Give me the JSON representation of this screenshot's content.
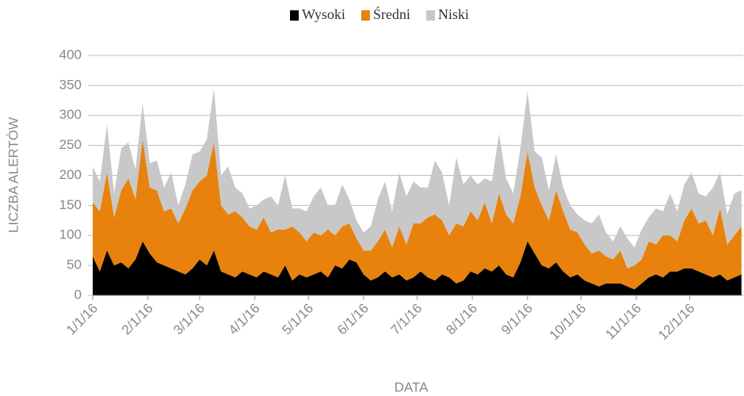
{
  "chart_data": {
    "type": "stacked_area",
    "xlabel": "DATA",
    "ylabel": "LICZBA ALERTÓW",
    "x": [
      "2016-01-01",
      "2016-01-05",
      "2016-01-09",
      "2016-01-13",
      "2016-01-17",
      "2016-01-21",
      "2016-01-25",
      "2016-01-29",
      "2016-02-02",
      "2016-02-06",
      "2016-02-10",
      "2016-02-14",
      "2016-02-18",
      "2016-02-22",
      "2016-02-26",
      "2016-03-01",
      "2016-03-05",
      "2016-03-09",
      "2016-03-13",
      "2016-03-17",
      "2016-03-21",
      "2016-03-25",
      "2016-03-29",
      "2016-04-02",
      "2016-04-06",
      "2016-04-10",
      "2016-04-14",
      "2016-04-18",
      "2016-04-22",
      "2016-04-26",
      "2016-04-30",
      "2016-05-04",
      "2016-05-08",
      "2016-05-12",
      "2016-05-16",
      "2016-05-20",
      "2016-05-24",
      "2016-05-28",
      "2016-06-01",
      "2016-06-05",
      "2016-06-09",
      "2016-06-13",
      "2016-06-17",
      "2016-06-21",
      "2016-06-25",
      "2016-06-29",
      "2016-07-03",
      "2016-07-07",
      "2016-07-11",
      "2016-07-15",
      "2016-07-19",
      "2016-07-23",
      "2016-07-27",
      "2016-07-31",
      "2016-08-04",
      "2016-08-08",
      "2016-08-12",
      "2016-08-16",
      "2016-08-20",
      "2016-08-24",
      "2016-08-28",
      "2016-09-01",
      "2016-09-05",
      "2016-09-09",
      "2016-09-13",
      "2016-09-17",
      "2016-09-21",
      "2016-09-25",
      "2016-09-29",
      "2016-10-03",
      "2016-10-07",
      "2016-10-11",
      "2016-10-15",
      "2016-10-19",
      "2016-10-23",
      "2016-10-27",
      "2016-10-31",
      "2016-11-04",
      "2016-11-08",
      "2016-11-12",
      "2016-11-16",
      "2016-11-20",
      "2016-11-24",
      "2016-11-28",
      "2016-12-02",
      "2016-12-06",
      "2016-12-10",
      "2016-12-14",
      "2016-12-18",
      "2016-12-22",
      "2016-12-26",
      "2016-12-30"
    ],
    "series": [
      {
        "name": "Wysoki",
        "color": "#000000",
        "values": [
          65,
          40,
          75,
          50,
          55,
          45,
          60,
          90,
          70,
          55,
          50,
          45,
          40,
          35,
          45,
          60,
          50,
          75,
          40,
          35,
          30,
          40,
          35,
          30,
          40,
          35,
          30,
          50,
          25,
          35,
          30,
          35,
          40,
          30,
          50,
          45,
          60,
          55,
          35,
          25,
          30,
          40,
          30,
          35,
          25,
          30,
          40,
          30,
          25,
          35,
          30,
          20,
          25,
          40,
          35,
          45,
          40,
          50,
          35,
          30,
          55,
          90,
          70,
          50,
          45,
          55,
          40,
          30,
          35,
          25,
          20,
          15,
          20,
          20,
          20,
          15,
          10,
          20,
          30,
          35,
          30,
          40,
          40,
          45,
          45,
          40,
          35,
          30,
          35,
          25,
          30,
          35
        ]
      },
      {
        "name": "Średni",
        "color": "#e8820c",
        "values": [
          90,
          100,
          130,
          80,
          120,
          150,
          100,
          170,
          110,
          120,
          90,
          100,
          80,
          110,
          130,
          130,
          150,
          180,
          110,
          100,
          110,
          90,
          80,
          80,
          90,
          70,
          80,
          60,
          90,
          70,
          60,
          70,
          60,
          80,
          50,
          70,
          60,
          40,
          40,
          50,
          60,
          70,
          50,
          80,
          60,
          90,
          80,
          100,
          110,
          90,
          70,
          100,
          90,
          100,
          90,
          110,
          80,
          120,
          100,
          90,
          110,
          150,
          110,
          100,
          80,
          120,
          100,
          80,
          70,
          60,
          50,
          60,
          45,
          40,
          55,
          30,
          40,
          40,
          60,
          50,
          70,
          60,
          50,
          80,
          100,
          80,
          90,
          70,
          110,
          60,
          70,
          80
        ]
      },
      {
        "name": "Niski",
        "color": "#c8c8c8",
        "values": [
          60,
          50,
          80,
          40,
          70,
          60,
          50,
          60,
          40,
          50,
          40,
          60,
          30,
          40,
          60,
          50,
          60,
          90,
          50,
          80,
          40,
          40,
          30,
          40,
          30,
          60,
          40,
          90,
          30,
          40,
          50,
          60,
          80,
          40,
          50,
          70,
          40,
          30,
          30,
          40,
          70,
          80,
          60,
          90,
          80,
          70,
          60,
          50,
          90,
          80,
          50,
          110,
          70,
          60,
          60,
          40,
          70,
          100,
          60,
          50,
          80,
          100,
          60,
          80,
          50,
          60,
          40,
          40,
          30,
          40,
          50,
          60,
          40,
          30,
          40,
          50,
          30,
          50,
          40,
          60,
          40,
          70,
          50,
          60,
          60,
          50,
          40,
          80,
          60,
          50,
          70,
          60
        ]
      }
    ],
    "xlim": [
      "2016-01-01",
      "2016-12-31"
    ],
    "xticks": [
      {
        "value": "2016-01-01",
        "label": "1/1/16"
      },
      {
        "value": "2016-02-01",
        "label": "2/1/16"
      },
      {
        "value": "2016-03-01",
        "label": "3/1/16"
      },
      {
        "value": "2016-04-01",
        "label": "4/1/16"
      },
      {
        "value": "2016-05-01",
        "label": "5/1/16"
      },
      {
        "value": "2016-06-01",
        "label": "6/1/16"
      },
      {
        "value": "2016-07-01",
        "label": "7/1/16"
      },
      {
        "value": "2016-08-01",
        "label": "8/1/16"
      },
      {
        "value": "2016-09-01",
        "label": "9/1/16"
      },
      {
        "value": "2016-10-01",
        "label": "10/1/16"
      },
      {
        "value": "2016-11-01",
        "label": "11/1/16"
      },
      {
        "value": "2016-12-01",
        "label": "12/1/16"
      }
    ],
    "ylim": [
      0,
      400
    ],
    "yticks": [
      0,
      50,
      100,
      150,
      200,
      250,
      300,
      350,
      400
    ],
    "grid": true,
    "legend": "top"
  }
}
